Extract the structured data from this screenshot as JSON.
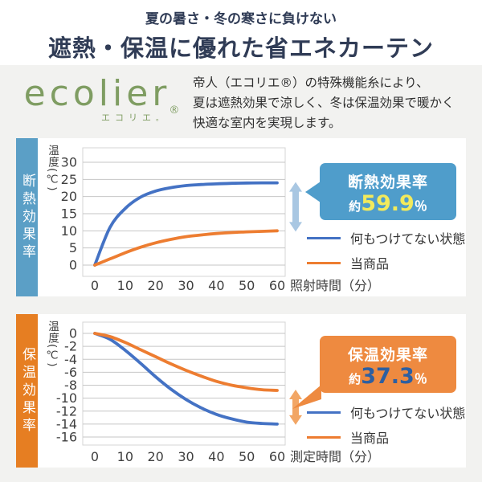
{
  "colors": {
    "page_bg": "#f2f2f0",
    "header_bg": "#ffffff",
    "header_text": "#303c56",
    "brand_green": "#7f9d62",
    "body_text": "#2f2f2f"
  },
  "header": {
    "subtitle": "夏の暑さ・冬の寒さに負けない",
    "title": "遮熱・保温に優れた省エネカーテン"
  },
  "brand": {
    "logo": "ecolier",
    "reg": "®",
    "kana": "エコリエ",
    "kana_mark": "。",
    "description_lines": [
      "帝人（エコリエ®）の特殊機能糸により、",
      "夏は遮熱効果で涼しく、冬は保温効果で暖かく",
      "快適な室内を実現します。"
    ]
  },
  "chart_data": [
    {
      "type": "line",
      "panel_label": "断熱効果率",
      "panel_color": "#5b9fc6",
      "ylabel": "温度(℃)",
      "xlabel": "照射時間（分）",
      "x": [
        0,
        5,
        10,
        15,
        20,
        25,
        30,
        35,
        40,
        45,
        50,
        55,
        60
      ],
      "x_ticks": [
        0,
        10,
        20,
        30,
        40,
        50,
        60
      ],
      "y_ticks": [
        30,
        25,
        20,
        15,
        10,
        5,
        0
      ],
      "ylim": [
        0,
        30
      ],
      "grid": true,
      "legend_position": "right-bottom",
      "series": [
        {
          "name": "何もつけてない状態",
          "color": "#4472c4",
          "values": [
            0,
            11,
            16.5,
            19.8,
            21.6,
            22.6,
            23.2,
            23.5,
            23.7,
            23.85,
            23.95,
            24,
            24
          ]
        },
        {
          "name": "当商品",
          "color": "#ed7d31",
          "values": [
            0,
            1.8,
            3.6,
            5.2,
            6.5,
            7.5,
            8.3,
            8.8,
            9.2,
            9.5,
            9.7,
            9.85,
            10
          ]
        }
      ],
      "gap_arrow_color": "#a9c7e2",
      "badge": {
        "bg": "#4f9dcb",
        "title": "断熱効果率",
        "prefix": "約",
        "value": "59.9",
        "unit": "％",
        "value_color": "#f2ea5c"
      }
    },
    {
      "type": "line",
      "panel_label": "保温効果率",
      "panel_color": "#e67e22",
      "ylabel": "温度(℃)",
      "xlabel": "測定時間（分）",
      "x": [
        0,
        5,
        10,
        15,
        20,
        25,
        30,
        35,
        40,
        45,
        50,
        55,
        60
      ],
      "x_ticks": [
        0,
        10,
        20,
        30,
        40,
        50,
        60
      ],
      "y_ticks": [
        0,
        -2,
        -4,
        -6,
        -8,
        -10,
        -12,
        -14,
        -16
      ],
      "ylim": [
        -16,
        0
      ],
      "grid": true,
      "legend_position": "right-bottom",
      "series": [
        {
          "name": "何もつけてない状態",
          "color": "#4472c4",
          "values": [
            0,
            -0.9,
            -2.6,
            -4.6,
            -6.7,
            -8.6,
            -10.2,
            -11.5,
            -12.5,
            -13.2,
            -13.7,
            -13.9,
            -14
          ]
        },
        {
          "name": "当商品",
          "color": "#ed7d31",
          "values": [
            0,
            -0.5,
            -1.4,
            -2.5,
            -3.6,
            -4.7,
            -5.7,
            -6.6,
            -7.4,
            -8,
            -8.4,
            -8.7,
            -8.8
          ]
        }
      ],
      "gap_arrow_color": "#f2a665",
      "badge": {
        "bg": "#ee8a40",
        "title": "保温効果率",
        "prefix": "約",
        "value": "37.3",
        "unit": "％",
        "value_color": "#2d5fa1"
      }
    }
  ]
}
